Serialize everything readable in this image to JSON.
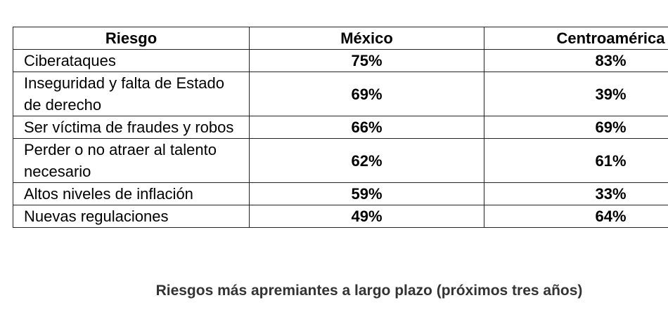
{
  "table": {
    "header": [
      "Riesgo",
      "México",
      "Centroamérica"
    ],
    "rows": [
      [
        "Ciberataques",
        "75%",
        "83%"
      ],
      [
        "Inseguridad y falta de Estado de derecho",
        "69%",
        "39%"
      ],
      [
        "Ser víctima de fraudes y robos",
        "66%",
        "69%"
      ],
      [
        "Perder o no atraer al talento necesario",
        "62%",
        "61%"
      ],
      [
        "Altos niveles de inflación",
        "59%",
        "33%"
      ],
      [
        "Nuevas regulaciones",
        "49%",
        "64%"
      ]
    ]
  },
  "caption": "Riesgos más apremiantes a largo plazo (próximos tres años)"
}
